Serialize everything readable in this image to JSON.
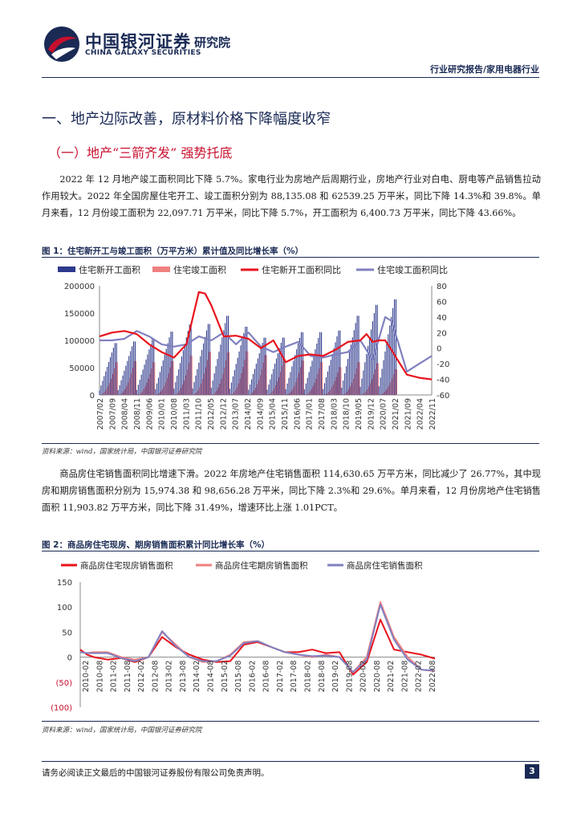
{
  "header": {
    "company_cn": "中国银河证券",
    "company_en": "CHINA GALAXY SECURITIES",
    "institute": "研究院",
    "report_type": "行业研究报告/家用电器行业"
  },
  "section": {
    "h1": "一、地产边际改善，原材料价格下降幅度收窄",
    "h2": "（一）地产“三箭齐发” 强势托底"
  },
  "paragraphs": [
    "2022 年 12 月地产竣工面积同比下降 5.7%。家电行业为房地产后周期行业，房地产行业对白电、厨电等产品销售拉动作用较大。2022 年全国房屋住宅开工、竣工面积分别为 88,135.08 和 62539.25 万平米，同比下降 14.3%和 39.8%。单月来看，12 月份竣工面积为 22,097.71 万平米，同比下降 5.7%，开工面积为 6,400.73 万平米，同比下降 43.66%。",
    "商品房住宅销售面积同比增速下滑。2022 年房地产住宅销售面积 114,630.65 万平方米，同比减少了 26.77%，其中现房和期房销售面积分别为 15,974.38 和 98,656.28 万平米，同比下降 2.3%和 29.6%。单月来看，12 月份房地产住宅销售面积 11,903.82 万平方米，同比下降 31.49%，增速环比上涨 1.01PCT。"
  ],
  "figures": [
    {
      "title": "图 1：住宅新开工与竣工面积（万平方米）累计值及同比增长率（%）",
      "source": "资料来源：wind，国家统计局，中国银河证券研究院"
    },
    {
      "title": "图 2：商品房住宅现房、期房销售面积累计同比增长率（%）",
      "source": "资料来源：wind，国家统计局，中国银河证券研究院"
    }
  ],
  "footer": {
    "disclaimer": "请务必阅读正文最后的中国银河证券股份有限公司免责声明。",
    "page": "3"
  },
  "colors": {
    "navy": "#1a2a55",
    "accent_red": "#c8102e",
    "bar_start": "#2e3a8c",
    "bar_complete": "#f08080",
    "line_start": "#e8141e",
    "line_complete": "#8080c0"
  },
  "chart_data": [
    {
      "type": "bar+line",
      "legend": [
        "住宅新开工面积",
        "住宅竣工面积",
        "住宅新开工面积同比",
        "住宅竣工面积同比"
      ],
      "legend_position": "top",
      "y_left_ticks": [
        "0",
        "50000",
        "100000",
        "150000",
        "200000"
      ],
      "y_left_range": [
        0,
        200000
      ],
      "y_right_ticks": [
        "-60",
        "-40",
        "-20",
        "0",
        "20",
        "40",
        "60",
        "80"
      ],
      "y_right_range": [
        -60,
        80
      ],
      "x_ticks": [
        "2007/02",
        "2007/09",
        "2008/04",
        "2008/11",
        "2009/06",
        "2010/01",
        "2010/08",
        "2011/03",
        "2011/10",
        "2012/05",
        "2012/12",
        "2013/07",
        "2014/02",
        "2014/09",
        "2015/04",
        "2015/11",
        "2016/06",
        "2017/01",
        "2017/08",
        "2018/03",
        "2018/10",
        "2019/05",
        "2019/12",
        "2020/07",
        "2021/02",
        "2021/09",
        "2022/04",
        "2022/11"
      ],
      "start_area_yearly_peak": [
        95000,
        98000,
        102000,
        116000,
        129000,
        130000,
        145000,
        125000,
        105000,
        105000,
        115000,
        115000,
        118000,
        145000,
        165000,
        175000
      ],
      "complete_area_yearly_peak": [
        60000,
        62000,
        60000,
        62000,
        72000,
        79000,
        78000,
        80000,
        73000,
        66000,
        63000,
        60000,
        51000,
        60000,
        58000,
        47000
      ],
      "start_yoy_series": {
        "x": [
          0,
          8,
          16,
          24,
          32,
          40,
          48,
          56,
          64,
          68,
          72,
          80,
          88,
          96,
          104,
          112,
          120,
          128,
          136,
          144,
          152,
          160,
          168,
          172,
          176,
          180,
          184,
          188,
          192,
          198,
          206,
          214
        ],
        "values": [
          15,
          20,
          22,
          18,
          5,
          -5,
          -12,
          5,
          72,
          70,
          55,
          15,
          16,
          12,
          0,
          10,
          -18,
          -10,
          -8,
          -10,
          -2,
          8,
          10,
          18,
          8,
          10,
          10,
          -2,
          -15,
          -34,
          -38,
          -40
        ]
      },
      "complete_yoy_series": {
        "x": [
          0,
          8,
          16,
          24,
          32,
          40,
          48,
          56,
          64,
          72,
          80,
          88,
          96,
          104,
          112,
          120,
          128,
          136,
          144,
          152,
          160,
          168,
          176,
          184,
          188,
          192,
          198,
          206,
          214
        ],
        "values": [
          10,
          10,
          12,
          22,
          15,
          5,
          2,
          5,
          15,
          10,
          20,
          5,
          20,
          2,
          -5,
          2,
          8,
          -10,
          -12,
          -8,
          -5,
          10,
          -15,
          40,
          35,
          10,
          -30,
          -20,
          -10
        ]
      }
    },
    {
      "type": "line",
      "legend": [
        "商品房住宅现房销售面积",
        "商品房住宅期房销售面积",
        "商品房住宅销售面积"
      ],
      "legend_position": "top",
      "y_ticks": [
        "(100)",
        "(50)",
        "0",
        "50",
        "100",
        "150"
      ],
      "ylim": [
        -100,
        150
      ],
      "x_ticks": [
        "2010-02",
        "2010-08",
        "2011-02",
        "2011-08",
        "2012-02",
        "2012-08",
        "2013-02",
        "2013-08",
        "2014-02",
        "2014-08",
        "2015-02",
        "2015-08",
        "2016-02",
        "2016-08",
        "2017-02",
        "2017-08",
        "2018-02",
        "2018-08",
        "2019-02",
        "2019-08",
        "2020-02",
        "2020-08",
        "2021-02",
        "2021-08",
        "2022-02",
        "2022-08"
      ],
      "series": [
        {
          "name": "商品房住宅现房销售面积",
          "color": "#e8141e",
          "x": [
            0,
            3,
            6,
            12,
            18,
            24,
            30,
            36,
            42,
            48,
            54,
            60,
            66,
            72,
            78,
            84,
            90,
            96,
            102,
            108,
            114,
            120,
            126,
            132,
            138,
            144,
            150,
            156
          ],
          "values": [
            15,
            5,
            0,
            -5,
            -2,
            -10,
            0,
            40,
            20,
            5,
            -5,
            -10,
            -8,
            25,
            30,
            20,
            10,
            10,
            15,
            8,
            10,
            -35,
            -10,
            75,
            15,
            10,
            5,
            -3
          ]
        },
        {
          "name": "商品房住宅期房销售面积",
          "color": "#f08080",
          "x": [
            0,
            3,
            6,
            12,
            18,
            24,
            30,
            36,
            42,
            48,
            54,
            60,
            66,
            72,
            78,
            84,
            90,
            96,
            102,
            108,
            114,
            120,
            126,
            132,
            138,
            144,
            150,
            156
          ],
          "values": [
            10,
            8,
            10,
            10,
            0,
            -5,
            0,
            50,
            25,
            0,
            -10,
            -8,
            5,
            30,
            32,
            20,
            10,
            5,
            0,
            5,
            0,
            -30,
            0,
            110,
            40,
            0,
            -25,
            -28
          ]
        },
        {
          "name": "商品房住宅销售面积",
          "color": "#8080c0",
          "x": [
            0,
            3,
            6,
            12,
            18,
            24,
            30,
            36,
            42,
            48,
            54,
            60,
            66,
            72,
            78,
            84,
            90,
            96,
            102,
            108,
            114,
            120,
            126,
            132,
            138,
            144,
            150,
            156
          ],
          "values": [
            10,
            8,
            8,
            8,
            -2,
            -8,
            0,
            52,
            22,
            0,
            -8,
            -8,
            3,
            28,
            32,
            20,
            10,
            5,
            2,
            3,
            0,
            -30,
            -5,
            105,
            35,
            -5,
            -25,
            -27
          ]
        }
      ]
    }
  ]
}
